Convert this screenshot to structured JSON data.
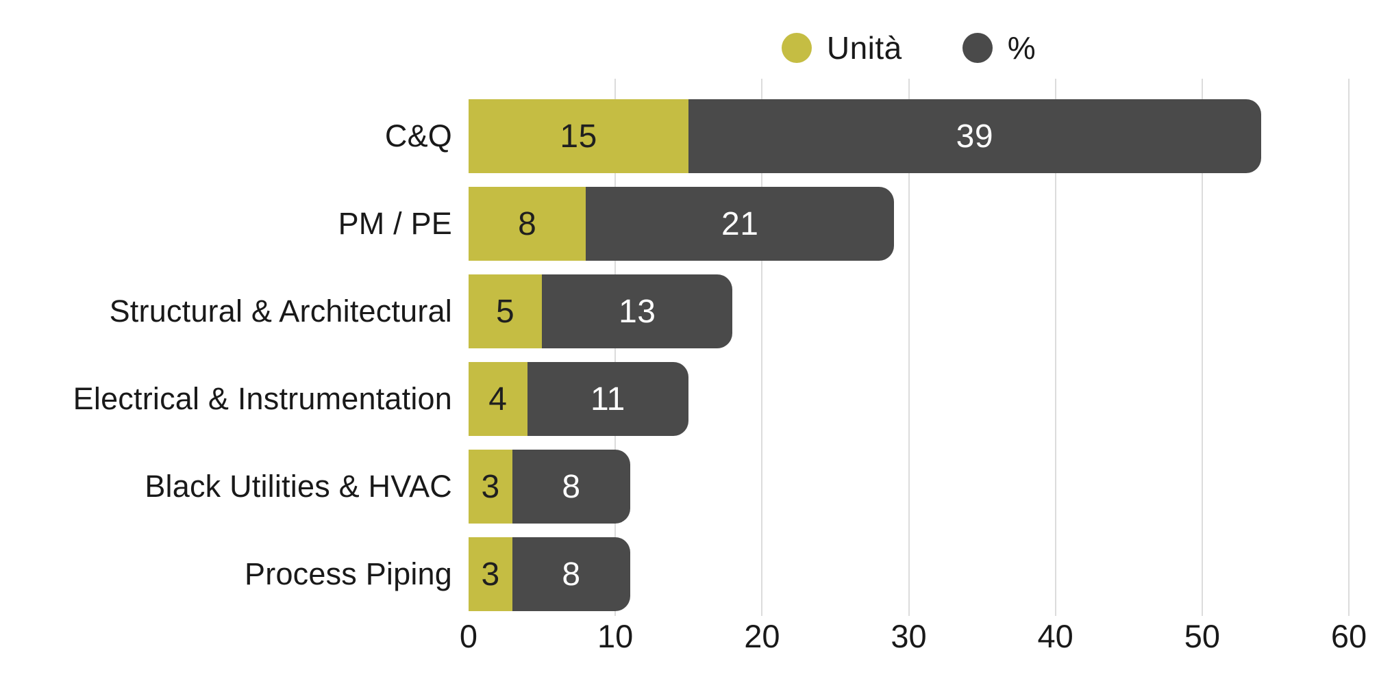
{
  "colors": {
    "unita": "#c5bd43",
    "percent": "#4a4a4a",
    "gridline": "#dcdcdc",
    "text": "#191919",
    "value_on_unita": "#1f1f1f",
    "value_on_percent": "#ffffff",
    "background": "#ffffff"
  },
  "legend": {
    "items": [
      {
        "label": "Unità",
        "color": "#c5bd43"
      },
      {
        "label": "%",
        "color": "#4a4a4a"
      }
    ]
  },
  "chart_data": {
    "type": "bar",
    "orientation": "horizontal",
    "stacked": true,
    "title": "",
    "xlabel": "",
    "ylabel": "",
    "categories": [
      "C&Q",
      "PM / PE",
      "Structural & Architectural",
      "Electrical & Instrumentation",
      "Black Utilities & HVAC",
      "Process Piping"
    ],
    "series": [
      {
        "name": "Unità",
        "color": "#c5bd43",
        "label_color": "#1f1f1f",
        "values": [
          15,
          8,
          5,
          4,
          3,
          3
        ]
      },
      {
        "name": "%",
        "color": "#4a4a4a",
        "label_color": "#ffffff",
        "values": [
          39,
          21,
          13,
          11,
          8,
          8
        ]
      }
    ],
    "totals": [
      54,
      29,
      18,
      15,
      11,
      11
    ],
    "xlim": [
      0,
      60
    ],
    "x_ticks": [
      0,
      10,
      20,
      30,
      40,
      50,
      60
    ],
    "grid": "vertical gridlines at ticks 10-60, drawn behind bars",
    "legend_position": "top-center",
    "bar_labels": "each segment shows its value centered inside"
  }
}
